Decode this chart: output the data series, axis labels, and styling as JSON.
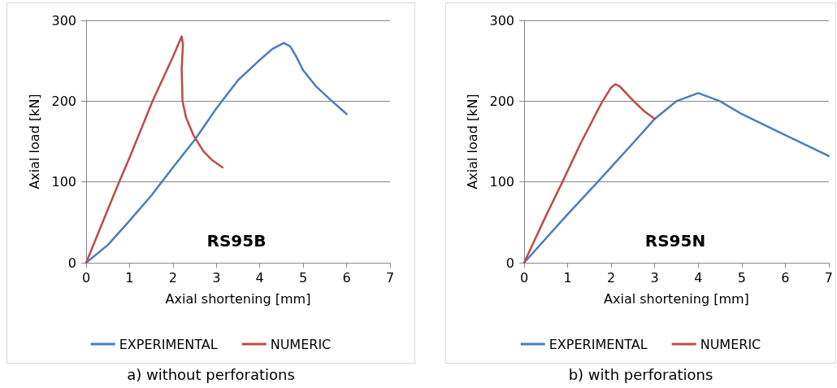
{
  "chart_data": [
    {
      "type": "line",
      "xlabel": "Axial shortening [mm]",
      "ylabel": "Axial load [kN]",
      "xlim": [
        0,
        7
      ],
      "xticks": [
        0,
        1,
        2,
        3,
        4,
        5,
        6,
        7
      ],
      "ylim": [
        0,
        300
      ],
      "yticks": [
        0,
        100,
        200,
        300
      ],
      "grid": "y",
      "legend": "bottom",
      "marker": "none",
      "annotations": [
        "RS95B",
        "a) without perforations"
      ],
      "series": [
        {
          "name": "EXPERIMENTAL",
          "color": "#4a7ebb",
          "x": [
            0,
            0.5,
            1,
            1.5,
            2,
            2.5,
            3,
            3.5,
            4,
            4.3,
            4.55,
            4.7,
            4.85,
            5,
            5.3,
            5.6,
            6
          ],
          "values": [
            0,
            22,
            52,
            83,
            118,
            152,
            191,
            226,
            251,
            265,
            272,
            268,
            254,
            238,
            218,
            203,
            184
          ]
        },
        {
          "name": "NUMERIC",
          "color": "#be4b48",
          "x": [
            0,
            0.5,
            0.76,
            1,
            1.53,
            2,
            2.2,
            2.23,
            2.2,
            2.22,
            2.3,
            2.47,
            2.7,
            2.9,
            3.14
          ],
          "values": [
            0,
            66,
            100,
            130,
            200,
            255,
            280,
            270,
            240,
            200,
            180,
            158,
            138,
            127,
            118
          ]
        }
      ]
    },
    {
      "type": "line",
      "xlabel": "Axial shortening [mm]",
      "ylabel": "Axial load [kN]",
      "xlim": [
        0,
        7
      ],
      "xticks": [
        0,
        1,
        2,
        3,
        4,
        5,
        6,
        7
      ],
      "ylim": [
        0,
        300
      ],
      "yticks": [
        0,
        100,
        200,
        300
      ],
      "grid": "y",
      "legend": "bottom",
      "marker": "none",
      "annotations": [
        "RS95N",
        "b) with perforations"
      ],
      "series": [
        {
          "name": "EXPERIMENTAL",
          "color": "#4a7ebb",
          "x": [
            0,
            1,
            1.69,
            2.5,
            3,
            3.5,
            4,
            4.5,
            5,
            5.5,
            6,
            6.5,
            7
          ],
          "values": [
            0,
            60,
            100,
            148,
            178,
            200,
            210,
            200,
            184,
            171,
            158,
            145,
            132
          ]
        },
        {
          "name": "NUMERIC",
          "color": "#be4b48",
          "x": [
            0,
            0.5,
            0.88,
            1.3,
            1.78,
            2,
            2.1,
            2.2,
            2.5,
            2.75,
            3
          ],
          "values": [
            0,
            58,
            100,
            148,
            198,
            217,
            221,
            218,
            201,
            188,
            178
          ]
        }
      ]
    }
  ]
}
